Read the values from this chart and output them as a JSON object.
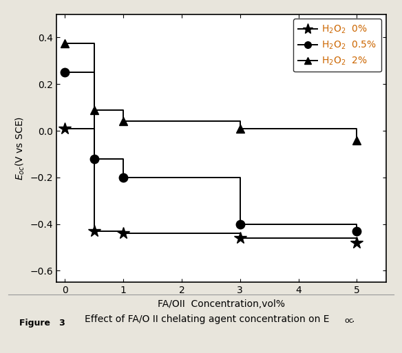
{
  "series": [
    {
      "label_parts": [
        "H",
        "2",
        "O",
        "2",
        "  0%"
      ],
      "marker": "*",
      "markersize": 13,
      "x": [
        0,
        0.5,
        1,
        3,
        5
      ],
      "y": [
        0.01,
        -0.43,
        -0.44,
        -0.46,
        -0.48
      ],
      "color": "black",
      "linewidth": 1.4
    },
    {
      "label_parts": [
        "H",
        "2",
        "O",
        "2",
        "  0.5%"
      ],
      "marker": "o",
      "markersize": 9,
      "x": [
        0,
        0.5,
        1,
        3,
        5
      ],
      "y": [
        0.25,
        -0.12,
        -0.2,
        -0.4,
        -0.43
      ],
      "color": "black",
      "linewidth": 1.4
    },
    {
      "label_parts": [
        "H",
        "2",
        "O",
        "2",
        "  2%"
      ],
      "marker": "^",
      "markersize": 9,
      "x": [
        0,
        0.5,
        1,
        3,
        5
      ],
      "y": [
        0.375,
        0.09,
        0.04,
        0.01,
        -0.04
      ],
      "color": "black",
      "linewidth": 1.4
    }
  ],
  "legend_labels": [
    "H$_2$O$_2$  0%",
    "H$_2$O$_2$  0.5%",
    "H$_2$O$_2$  2%"
  ],
  "xlabel": "FA/OII  Concentration,vol%",
  "ylabel": "$E_{oc}$(V vs SCE)",
  "xlim": [
    -0.15,
    5.5
  ],
  "ylim": [
    -0.65,
    0.5
  ],
  "xticks": [
    0,
    1,
    2,
    3,
    4,
    5
  ],
  "yticks": [
    -0.6,
    -0.4,
    -0.2,
    0.0,
    0.2,
    0.4
  ],
  "background_color": "#ebe8e0",
  "plot_bg_color": "#ffffff",
  "caption_bg": "#b5aa8a",
  "outer_bg": "#e8e5dc"
}
